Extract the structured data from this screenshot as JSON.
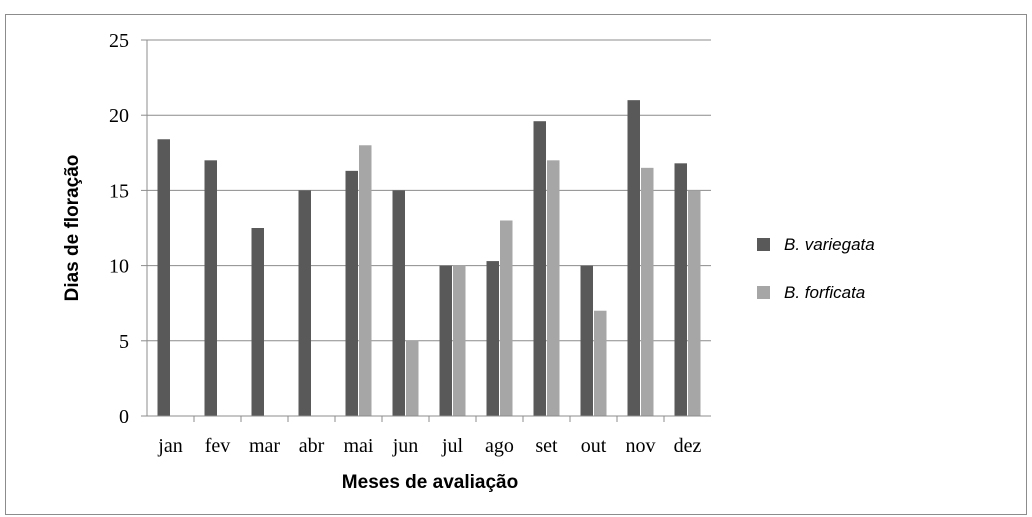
{
  "chart_data": {
    "type": "bar",
    "title": "",
    "xlabel": "Meses de avaliação",
    "ylabel": "Dias de floração",
    "categories": [
      "jan",
      "fev",
      "mar",
      "abr",
      "mai",
      "jun",
      "jul",
      "ago",
      "set",
      "out",
      "nov",
      "dez"
    ],
    "series": [
      {
        "name": "B. variegata",
        "color": "#595959",
        "values": [
          18.4,
          17,
          12.5,
          15,
          16.3,
          15,
          10,
          10.3,
          19.6,
          10,
          21,
          16.8
        ]
      },
      {
        "name": "B. forficata",
        "color": "#a6a6a6",
        "values": [
          0,
          0,
          0,
          0,
          18,
          5,
          10,
          13,
          17,
          7,
          16.5,
          15
        ]
      }
    ],
    "ylim": [
      0,
      25
    ],
    "yticks": [
      0,
      5,
      10,
      15,
      20,
      25
    ],
    "grid": true,
    "legend_position": "right"
  }
}
